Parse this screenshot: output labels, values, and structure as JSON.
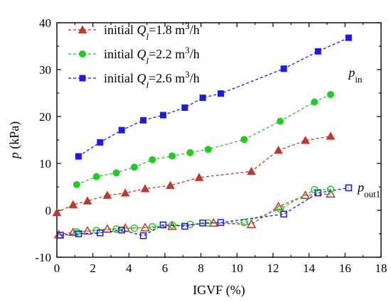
{
  "chart_data": {
    "type": "line",
    "xlabel": "IGVF (%)",
    "ylabel_main": "p",
    "ylabel_unit": "(kPa)",
    "xlim": [
      0,
      18
    ],
    "ylim": [
      -10,
      40
    ],
    "xticks": [
      0,
      2,
      4,
      6,
      8,
      10,
      12,
      14,
      16,
      18
    ],
    "yticks": [
      -10,
      0,
      10,
      20,
      30,
      40
    ],
    "grid": false,
    "legend_position": "top-left",
    "legend": [
      {
        "prefix": "initial ",
        "sym": "Q",
        "sub": "l",
        "suffix": "=1.8 m",
        "sup": "3",
        "tail": "/h",
        "color": "#c0392b",
        "marker": "triangle"
      },
      {
        "prefix": "initial ",
        "sym": "Q",
        "sub": "l",
        "suffix": "=2.2 m",
        "sup": "3",
        "tail": "/h",
        "color": "#22cc22",
        "marker": "circle"
      },
      {
        "prefix": "initial ",
        "sym": "Q",
        "sub": "l",
        "suffix": "=2.6 m",
        "sup": "3",
        "tail": "/h",
        "color": "#1a1aee",
        "marker": "square"
      }
    ],
    "annotations": [
      {
        "main": "p",
        "sub": "in",
        "x": 16.2,
        "y": 28.5
      },
      {
        "main": "p",
        "sub": "out1",
        "x": 16.7,
        "y": 4.0
      }
    ],
    "series": [
      {
        "group": "inlet",
        "legend_index": 0,
        "marker": "triangle",
        "filled": true,
        "color": "#c0392b",
        "x": [
          0,
          0.9,
          1.7,
          2.8,
          3.8,
          4.9,
          6.3,
          7.9,
          10.8,
          12.3,
          13.8,
          15.2
        ],
        "y": [
          -0.5,
          1.2,
          2.0,
          3.2,
          3.7,
          4.6,
          5.3,
          7.0,
          8.3,
          12.8,
          14.9,
          15.8
        ]
      },
      {
        "group": "inlet",
        "legend_index": 1,
        "marker": "circle",
        "filled": true,
        "color": "#22cc22",
        "x": [
          1.1,
          2.2,
          3.3,
          4.3,
          5.3,
          6.4,
          7.4,
          8.4,
          10.4,
          12.4,
          14.3,
          15.2
        ],
        "y": [
          5.5,
          7.2,
          8.0,
          9.2,
          10.8,
          11.6,
          12.3,
          13.0,
          15.1,
          19.0,
          23.1,
          24.7
        ],
        "filled_last": true
      },
      {
        "group": "inlet",
        "legend_index": 2,
        "marker": "square",
        "filled": true,
        "color": "#1a1aee",
        "x": [
          1.2,
          2.4,
          3.6,
          4.8,
          5.9,
          7.1,
          8.1,
          9.1,
          12.6,
          14.5,
          16.2
        ],
        "y": [
          11.5,
          14.5,
          17.1,
          19.2,
          20.3,
          21.9,
          24.0,
          24.9,
          30.2,
          33.9,
          36.8
        ]
      },
      {
        "group": "outlet",
        "marker": "triangle",
        "filled": false,
        "color": "#c0392b",
        "x": [
          0.1,
          0.9,
          1.7,
          2.8,
          3.8,
          4.9,
          6.4,
          8.7,
          10.8,
          12.3,
          13.8,
          15.2
        ],
        "y": [
          -5.2,
          -4.7,
          -4.4,
          -4.0,
          -3.8,
          -3.7,
          -3.4,
          -2.7,
          -3.0,
          0.8,
          3.2,
          3.5
        ]
      },
      {
        "group": "outlet",
        "marker": "circle",
        "filled": false,
        "color": "#22cc22",
        "x": [
          1.1,
          2.2,
          3.3,
          4.3,
          5.3,
          6.4,
          7.4,
          8.4,
          10.4,
          12.4,
          14.3,
          15.2
        ],
        "y": [
          -4.6,
          -4.3,
          -4.0,
          -3.8,
          -3.5,
          -3.1,
          -3.0,
          -2.7,
          -2.6,
          0.3,
          4.4,
          4.5
        ]
      },
      {
        "group": "outlet",
        "marker": "square",
        "filled": false,
        "color": "#1a1aee",
        "x": [
          0.2,
          1.2,
          2.4,
          3.6,
          4.8,
          5.9,
          7.1,
          8.1,
          9.1,
          12.6,
          14.5,
          16.2
        ],
        "y": [
          -5.3,
          -5.0,
          -4.8,
          -4.2,
          -5.4,
          -3.1,
          -3.4,
          -2.7,
          -2.6,
          -0.8,
          3.7,
          4.8
        ]
      }
    ]
  }
}
